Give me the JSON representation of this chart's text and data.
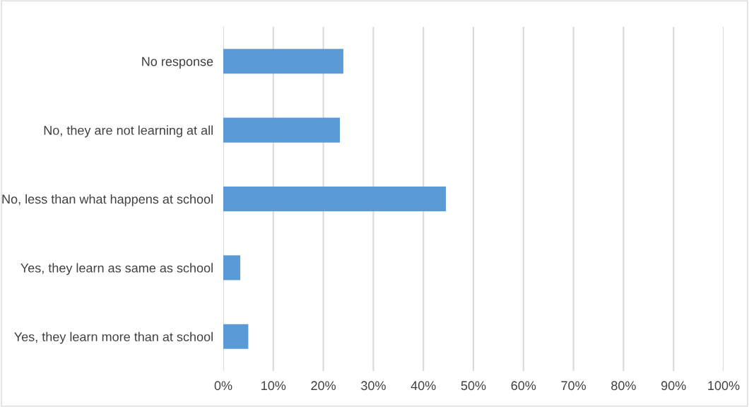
{
  "chart_data": {
    "type": "bar",
    "orientation": "horizontal",
    "categories": [
      "No response",
      "No, they are not learning at all",
      "No, less than what happens at school",
      "Yes, they learn as same as school",
      "Yes, they learn more than at school"
    ],
    "values": [
      24.0,
      23.3,
      44.5,
      3.4,
      5.0
    ],
    "color": "#5b9bd5",
    "xlim": [
      0,
      100
    ],
    "xticks": [
      {
        "value": 0,
        "label": "0%"
      },
      {
        "value": 10,
        "label": "10%"
      },
      {
        "value": 20,
        "label": "20%"
      },
      {
        "value": 30,
        "label": "30%"
      },
      {
        "value": 40,
        "label": "40%"
      },
      {
        "value": 50,
        "label": "50%"
      },
      {
        "value": 60,
        "label": "60%"
      },
      {
        "value": 70,
        "label": "70%"
      },
      {
        "value": 80,
        "label": "80%"
      },
      {
        "value": 90,
        "label": "90%"
      },
      {
        "value": 100,
        "label": "100%"
      }
    ],
    "grid": "x"
  }
}
